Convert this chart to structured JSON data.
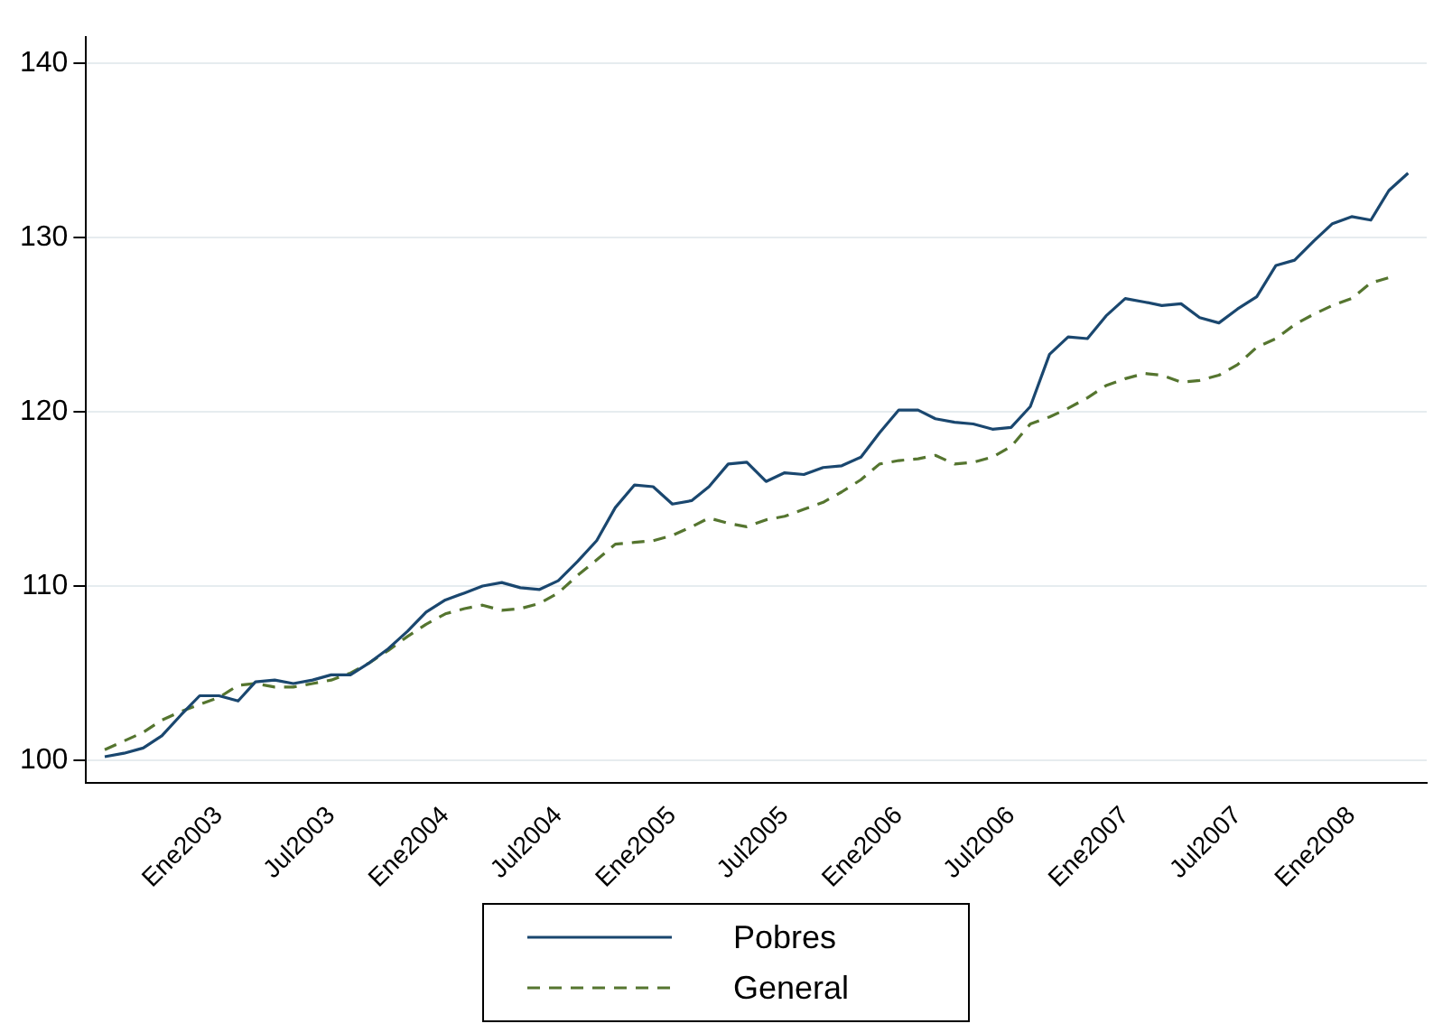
{
  "chart_data": {
    "type": "line",
    "xlim": [
      "2002-06",
      "2008-05"
    ],
    "ylim": [
      98.7,
      141.5
    ],
    "xticks": [
      {
        "value": "2003-01",
        "label": "Ene2003"
      },
      {
        "value": "2003-07",
        "label": "Jul2003"
      },
      {
        "value": "2004-01",
        "label": "Ene2004"
      },
      {
        "value": "2004-07",
        "label": "Jul2004"
      },
      {
        "value": "2005-01",
        "label": "Ene2005"
      },
      {
        "value": "2005-07",
        "label": "Jul2005"
      },
      {
        "value": "2006-01",
        "label": "Ene2006"
      },
      {
        "value": "2006-07",
        "label": "Jul2006"
      },
      {
        "value": "2007-01",
        "label": "Ene2007"
      },
      {
        "value": "2007-07",
        "label": "Jul2007"
      },
      {
        "value": "2008-01",
        "label": "Ene2008"
      }
    ],
    "yticks": [
      100,
      110,
      120,
      130,
      140
    ],
    "grid": "y",
    "legend": "bottom",
    "marker": "none",
    "x": [
      "2002-07",
      "2002-08",
      "2002-09",
      "2002-10",
      "2002-11",
      "2002-12",
      "2003-01",
      "2003-02",
      "2003-03",
      "2003-04",
      "2003-05",
      "2003-06",
      "2003-07",
      "2003-08",
      "2003-09",
      "2003-10",
      "2003-11",
      "2003-12",
      "2004-01",
      "2004-02",
      "2004-03",
      "2004-04",
      "2004-05",
      "2004-06",
      "2004-07",
      "2004-08",
      "2004-09",
      "2004-10",
      "2004-11",
      "2004-12",
      "2005-01",
      "2005-02",
      "2005-03",
      "2005-04",
      "2005-05",
      "2005-06",
      "2005-07",
      "2005-08",
      "2005-09",
      "2005-10",
      "2005-11",
      "2005-12",
      "2006-01",
      "2006-02",
      "2006-03",
      "2006-04",
      "2006-05",
      "2006-06",
      "2006-07",
      "2006-08",
      "2006-09",
      "2006-10",
      "2006-11",
      "2006-12",
      "2007-01",
      "2007-02",
      "2007-03",
      "2007-04",
      "2007-05",
      "2007-06",
      "2007-07",
      "2007-08",
      "2007-09",
      "2007-10",
      "2007-11",
      "2007-12",
      "2008-01",
      "2008-02",
      "2008-03",
      "2008-04"
    ],
    "series": [
      {
        "name": "Pobres",
        "color": "#1a476f",
        "line_style": "solid",
        "values": [
          100.2,
          100.4,
          100.7,
          101.4,
          102.6,
          103.7,
          103.7,
          103.4,
          104.5,
          104.6,
          104.4,
          104.6,
          104.9,
          104.9,
          105.6,
          106.4,
          107.4,
          108.5,
          109.2,
          109.6,
          110.0,
          110.2,
          109.9,
          109.8,
          110.3,
          111.4,
          112.6,
          114.5,
          115.8,
          115.7,
          114.7,
          114.9,
          115.7,
          117.0,
          117.1,
          116.0,
          116.5,
          116.4,
          116.8,
          116.9,
          117.4,
          118.8,
          120.1,
          120.1,
          119.6,
          119.4,
          119.3,
          119.0,
          119.1,
          120.3,
          123.3,
          124.3,
          124.2,
          125.5,
          126.5,
          126.3,
          126.1,
          126.2,
          125.4,
          125.1,
          125.9,
          126.6,
          128.4,
          128.7,
          129.8,
          130.8,
          131.2,
          131.0,
          132.7,
          133.7
        ]
      },
      {
        "name": "General",
        "color": "#55752f",
        "line_style": "dashed",
        "values": [
          100.6,
          101.1,
          101.6,
          102.3,
          102.8,
          103.2,
          103.6,
          104.3,
          104.4,
          104.2,
          104.2,
          104.4,
          104.6,
          105.0,
          105.6,
          106.3,
          107.1,
          107.8,
          108.4,
          108.7,
          108.9,
          108.6,
          108.7,
          109.0,
          109.6,
          110.6,
          111.5,
          112.4,
          112.5,
          112.6,
          112.9,
          113.4,
          113.9,
          113.6,
          113.4,
          113.8,
          114.0,
          114.4,
          114.8,
          115.4,
          116.1,
          117.0,
          117.2,
          117.3,
          117.5,
          117.0,
          117.1,
          117.4,
          118.0,
          119.3,
          119.7,
          120.2,
          120.8,
          121.5,
          121.9,
          122.2,
          122.1,
          121.7,
          121.8,
          122.1,
          122.7,
          123.7,
          124.2,
          125.0,
          125.6,
          126.1,
          126.5,
          127.4,
          127.7,
          null
        ]
      }
    ]
  }
}
